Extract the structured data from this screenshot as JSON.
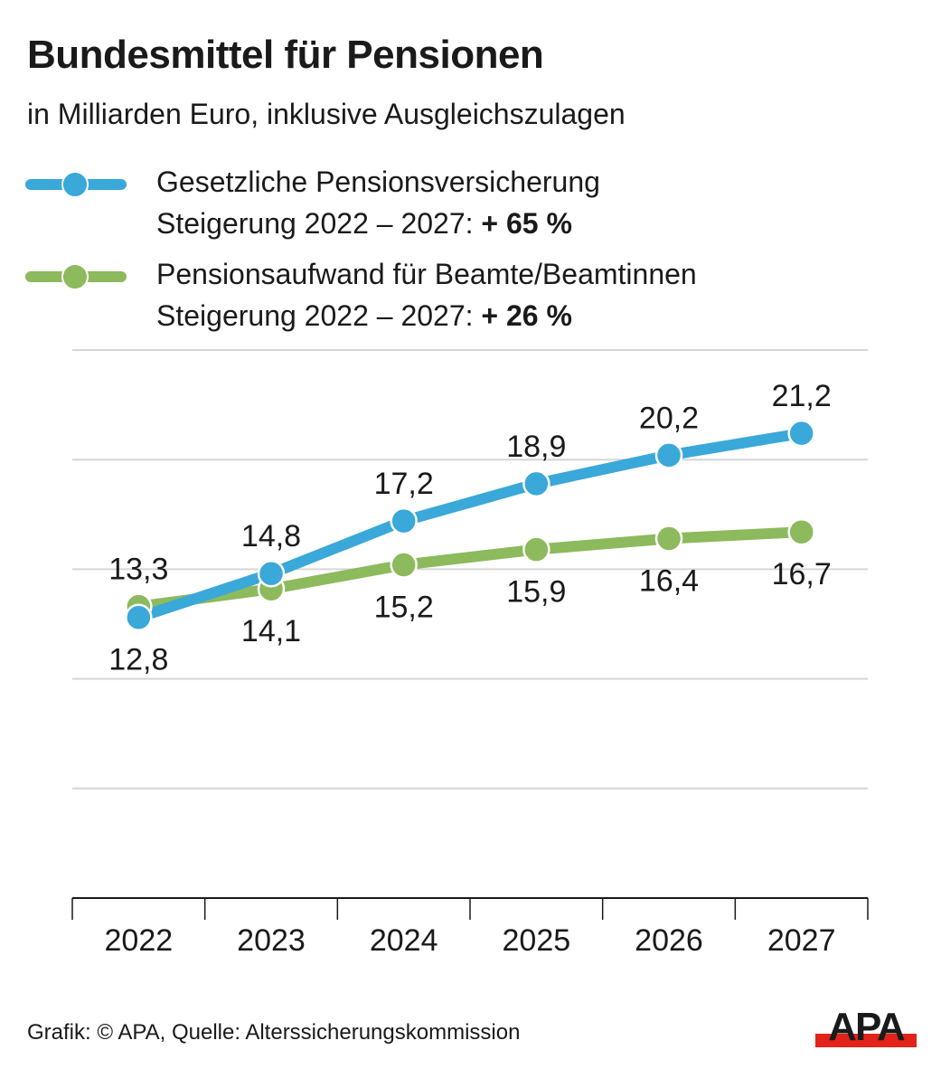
{
  "header": {
    "title": "Bundesmittel für Pensionen",
    "subtitle": "in Milliarden Euro, inklusive Ausgleichszulagen"
  },
  "legend": [
    {
      "name": "Gesetzliche Pensionsversicherung",
      "note_prefix": "Steigerung 2022 – 2027: ",
      "note_value": "+ 65 %",
      "color": "#3aa8d8"
    },
    {
      "name": "Pensionsaufwand für Beamte/Beamtinnen",
      "note_prefix": "Steigerung 2022 – 2027: ",
      "note_value": "+ 26 %",
      "color": "#8cba5c"
    }
  ],
  "chart_data": {
    "type": "line",
    "title": "Bundesmittel für Pensionen",
    "subtitle": "in Milliarden Euro, inklusive Ausgleichszulagen",
    "xlabel": "",
    "ylabel": "",
    "categories": [
      "2022",
      "2023",
      "2024",
      "2025",
      "2026",
      "2027"
    ],
    "series": [
      {
        "name": "Gesetzliche Pensionsversicherung",
        "color": "#3aa8d8",
        "values": [
          12.8,
          14.8,
          17.2,
          18.9,
          20.2,
          21.2
        ],
        "labels": [
          "12,8",
          "14,8",
          "17,2",
          "18,9",
          "20,2",
          "21,2"
        ],
        "label_positions": [
          "below",
          "above",
          "above",
          "above",
          "above",
          "above"
        ]
      },
      {
        "name": "Pensionsaufwand für Beamte/Beamtinnen",
        "color": "#8cba5c",
        "values": [
          13.3,
          14.1,
          15.2,
          15.9,
          16.4,
          16.7
        ],
        "labels": [
          "13,3",
          "14,1",
          "15,2",
          "15,9",
          "16,4",
          "16,7"
        ],
        "label_positions": [
          "above",
          "below",
          "below",
          "below",
          "below",
          "below"
        ]
      }
    ],
    "ylim": [
      0,
      25
    ],
    "gridlines": [
      5,
      10,
      15,
      20,
      25
    ],
    "grid": true,
    "y_tick_labels_visible": false,
    "legend_position": "top-left"
  },
  "footer": {
    "source": "Grafik: © APA, Quelle: Alterssicherungskommission",
    "logo_text": "APA",
    "logo_accent": "#e2231a"
  }
}
